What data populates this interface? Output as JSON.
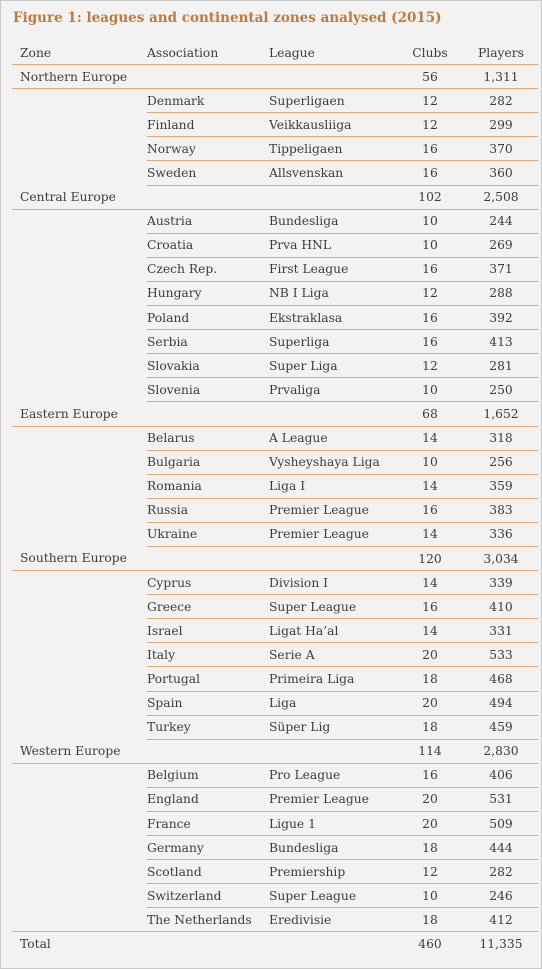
{
  "title": "Figure 1: leagues and continental zones analysed (2015)",
  "headers": {
    "zone": "Zone",
    "association": "Association",
    "league": "League",
    "clubs": "Clubs",
    "players": "Players"
  },
  "zones": [
    {
      "name": "Northern Europe",
      "clubs": "56",
      "players": "1,311",
      "rows": [
        {
          "association": "Denmark",
          "league": "Superligaen",
          "clubs": "12",
          "players": "282"
        },
        {
          "association": "Finland",
          "league": "Veikkausliiga",
          "clubs": "12",
          "players": "299"
        },
        {
          "association": "Norway",
          "league": "Tippeligaen",
          "clubs": "16",
          "players": "370"
        },
        {
          "association": "Sweden",
          "league": "Allsvenskan",
          "clubs": "16",
          "players": "360"
        }
      ]
    },
    {
      "name": "Central Europe",
      "clubs": "102",
      "players": "2,508",
      "rows": [
        {
          "association": "Austria",
          "league": "Bundesliga",
          "clubs": "10",
          "players": "244"
        },
        {
          "association": "Croatia",
          "league": "Prva HNL",
          "clubs": "10",
          "players": "269"
        },
        {
          "association": "Czech Rep.",
          "league": "First League",
          "clubs": "16",
          "players": "371"
        },
        {
          "association": "Hungary",
          "league": "NB I Liga",
          "clubs": "12",
          "players": "288"
        },
        {
          "association": "Poland",
          "league": "Ekstraklasa",
          "clubs": "16",
          "players": "392"
        },
        {
          "association": "Serbia",
          "league": "Superliga",
          "clubs": "16",
          "players": "413"
        },
        {
          "association": "Slovakia",
          "league": "Super Liga",
          "clubs": "12",
          "players": "281"
        },
        {
          "association": "Slovenia",
          "league": "Prvaliga",
          "clubs": "10",
          "players": "250"
        }
      ]
    },
    {
      "name": "Eastern Europe",
      "clubs": "68",
      "players": "1,652",
      "rows": [
        {
          "association": "Belarus",
          "league": "A League",
          "clubs": "14",
          "players": "318"
        },
        {
          "association": "Bulgaria",
          "league": "Vysheyshaya Liga",
          "clubs": "10",
          "players": "256"
        },
        {
          "association": "Romania",
          "league": "Liga I",
          "clubs": "14",
          "players": "359"
        },
        {
          "association": "Russia",
          "league": "Premier League",
          "clubs": "16",
          "players": "383"
        },
        {
          "association": "Ukraine",
          "league": "Premier League",
          "clubs": "14",
          "players": "336"
        }
      ]
    },
    {
      "name": "Southern Europe",
      "clubs": "120",
      "players": "3,034",
      "rows": [
        {
          "association": "Cyprus",
          "league": "Division I",
          "clubs": "14",
          "players": "339"
        },
        {
          "association": "Greece",
          "league": "Super League",
          "clubs": "16",
          "players": "410"
        },
        {
          "association": "Israel",
          "league": "Ligat Ha’al",
          "clubs": "14",
          "players": "331"
        },
        {
          "association": "Italy",
          "league": "Serie A",
          "clubs": "20",
          "players": "533"
        },
        {
          "association": "Portugal",
          "league": "Primeira Liga",
          "clubs": "18",
          "players": "468"
        },
        {
          "association": "Spain",
          "league": "Liga",
          "clubs": "20",
          "players": "494"
        },
        {
          "association": "Turkey",
          "league": "Süper Lig",
          "clubs": "18",
          "players": "459"
        }
      ]
    },
    {
      "name": "Western Europe",
      "clubs": "114",
      "players": "2,830",
      "rows": [
        {
          "association": "Belgium",
          "league": "Pro League",
          "clubs": "16",
          "players": "406"
        },
        {
          "association": "England",
          "league": "Premier League",
          "clubs": "20",
          "players": "531"
        },
        {
          "association": "France",
          "league": "Ligue 1",
          "clubs": "20",
          "players": "509"
        },
        {
          "association": "Germany",
          "league": "Bundesliga",
          "clubs": "18",
          "players": "444"
        },
        {
          "association": "Scotland",
          "league": "Premiership",
          "clubs": "12",
          "players": "282"
        },
        {
          "association": "Switzerland",
          "league": "Super League",
          "clubs": "10",
          "players": "246"
        },
        {
          "association": "The Netherlands",
          "league": "Eredivisie",
          "clubs": "18",
          "players": "412"
        }
      ]
    }
  ],
  "total": {
    "label": "Total",
    "clubs": "460",
    "players": "11,335"
  }
}
